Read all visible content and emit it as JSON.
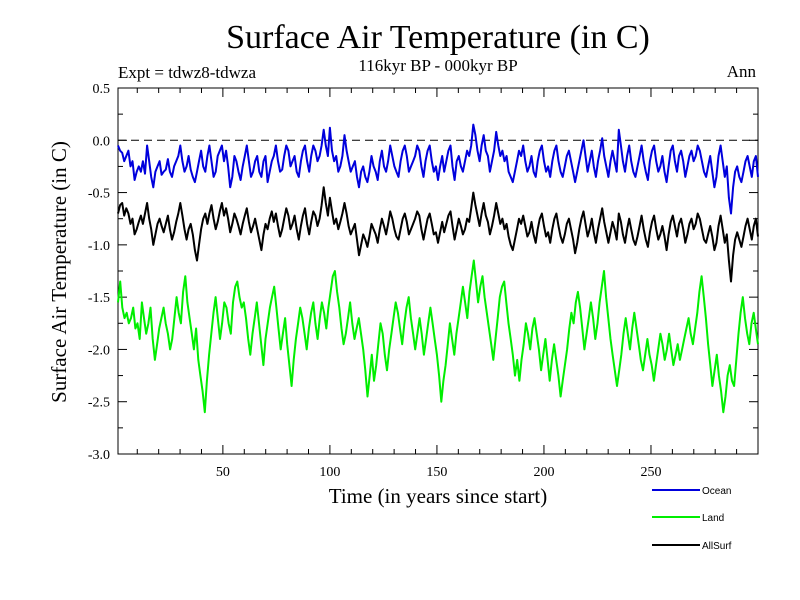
{
  "chart_data": {
    "type": "line",
    "title": "Surface Air Temperature (in C)",
    "subtitle": "116kyr BP - 000kyr BP",
    "experiment": "Expt = tdwz8-tdwza",
    "season": "Ann",
    "xlabel": "Time (in years since start)",
    "ylabel": "Surface Air Temperature (in C)",
    "xlim": [
      1,
      300
    ],
    "ylim": [
      -3.0,
      0.5
    ],
    "x_ticks": [
      50,
      100,
      150,
      200,
      250
    ],
    "x_tick_labels": [
      "50",
      "100",
      "150",
      "200",
      "250"
    ],
    "y_ticks": [
      0.5,
      0.0,
      -0.5,
      -1.0,
      -1.5,
      -2.0,
      -2.5,
      -3.0
    ],
    "y_tick_labels": [
      "0.5",
      "0.0",
      "-0.5",
      "-1.0",
      "-1.5",
      "-2.0",
      "-2.5",
      "-3.0"
    ],
    "reference_line": 0.0,
    "series": [
      {
        "name": "Ocean",
        "color": "#0000dd",
        "values": [
          -0.05,
          -0.1,
          -0.12,
          -0.2,
          -0.15,
          -0.1,
          -0.25,
          -0.2,
          -0.38,
          -0.3,
          -0.25,
          -0.3,
          -0.2,
          -0.32,
          -0.05,
          -0.2,
          -0.35,
          -0.45,
          -0.3,
          -0.25,
          -0.2,
          -0.33,
          -0.3,
          -0.28,
          -0.18,
          -0.3,
          -0.35,
          -0.25,
          -0.2,
          -0.15,
          -0.05,
          -0.2,
          -0.3,
          -0.25,
          -0.15,
          -0.28,
          -0.35,
          -0.4,
          -0.3,
          -0.2,
          -0.1,
          -0.25,
          -0.3,
          -0.15,
          -0.05,
          -0.2,
          -0.35,
          -0.3,
          -0.15,
          -0.1,
          -0.05,
          -0.2,
          -0.1,
          -0.25,
          -0.45,
          -0.35,
          -0.15,
          -0.2,
          -0.3,
          -0.38,
          -0.25,
          -0.15,
          -0.05,
          -0.2,
          -0.35,
          -0.3,
          -0.2,
          -0.15,
          -0.3,
          -0.35,
          -0.2,
          -0.15,
          -0.4,
          -0.3,
          -0.2,
          -0.15,
          -0.05,
          -0.2,
          -0.3,
          -0.28,
          -0.15,
          -0.05,
          -0.1,
          -0.25,
          -0.2,
          -0.15,
          -0.3,
          -0.35,
          -0.2,
          -0.1,
          -0.05,
          -0.2,
          -0.3,
          -0.15,
          -0.05,
          -0.1,
          -0.2,
          -0.15,
          -0.05,
          0.1,
          -0.05,
          -0.15,
          0.12,
          -0.1,
          -0.2,
          -0.15,
          -0.3,
          -0.25,
          -0.15,
          0.05,
          -0.1,
          -0.2,
          -0.3,
          -0.25,
          -0.2,
          -0.35,
          -0.45,
          -0.3,
          -0.25,
          -0.35,
          -0.4,
          -0.3,
          -0.15,
          -0.25,
          -0.3,
          -0.38,
          -0.2,
          -0.1,
          -0.25,
          -0.3,
          -0.2,
          -0.05,
          -0.15,
          -0.25,
          -0.3,
          -0.35,
          -0.2,
          -0.1,
          -0.05,
          -0.15,
          -0.3,
          -0.25,
          -0.2,
          -0.15,
          -0.05,
          -0.1,
          -0.25,
          -0.35,
          -0.2,
          -0.1,
          -0.05,
          -0.2,
          -0.3,
          -0.25,
          -0.38,
          -0.25,
          -0.15,
          -0.3,
          -0.2,
          -0.1,
          -0.05,
          -0.25,
          -0.38,
          -0.2,
          -0.15,
          -0.25,
          -0.3,
          -0.2,
          -0.1,
          -0.15,
          -0.05,
          0.15,
          0.05,
          -0.1,
          -0.2,
          -0.05,
          0.05,
          -0.1,
          -0.15,
          -0.3,
          -0.2,
          -0.1,
          0.08,
          -0.05,
          -0.15,
          -0.1,
          -0.2,
          -0.15,
          -0.3,
          -0.35,
          -0.4,
          -0.3,
          -0.2,
          -0.1,
          -0.15,
          -0.05,
          -0.2,
          -0.3,
          -0.25,
          -0.15,
          -0.3,
          -0.35,
          -0.2,
          -0.1,
          -0.05,
          -0.2,
          -0.3,
          -0.25,
          -0.35,
          -0.2,
          -0.1,
          -0.05,
          -0.2,
          -0.3,
          -0.35,
          -0.25,
          -0.15,
          -0.1,
          -0.2,
          -0.3,
          -0.4,
          -0.3,
          -0.2,
          -0.1,
          0.0,
          -0.15,
          -0.3,
          -0.2,
          -0.1,
          -0.25,
          -0.35,
          -0.2,
          -0.1,
          0.02,
          -0.15,
          -0.25,
          -0.35,
          -0.2,
          -0.1,
          -0.2,
          -0.3,
          0.1,
          -0.05,
          -0.2,
          -0.3,
          -0.15,
          -0.05,
          -0.2,
          -0.3,
          -0.35,
          -0.25,
          -0.15,
          -0.05,
          -0.2,
          -0.3,
          -0.38,
          -0.2,
          -0.1,
          -0.05,
          -0.2,
          -0.3,
          -0.25,
          -0.15,
          -0.3,
          -0.4,
          -0.25,
          -0.1,
          -0.05,
          -0.2,
          -0.3,
          -0.15,
          -0.1,
          -0.2,
          -0.35,
          -0.25,
          -0.15,
          -0.1,
          -0.2,
          -0.15,
          -0.05,
          -0.1,
          -0.2,
          -0.3,
          -0.35,
          -0.25,
          -0.15,
          -0.3,
          -0.45,
          -0.35,
          -0.15,
          -0.05,
          -0.2,
          -0.35,
          -0.25,
          -0.55,
          -0.7,
          -0.45,
          -0.3,
          -0.25,
          -0.35,
          -0.4,
          -0.3,
          -0.2,
          -0.15,
          -0.25,
          -0.35,
          -0.2,
          -0.15,
          -0.35
        ]
      },
      {
        "name": "Land",
        "color": "#00ee00",
        "values": [
          -1.55,
          -1.35,
          -1.6,
          -1.7,
          -1.65,
          -1.75,
          -1.7,
          -1.6,
          -1.8,
          -1.75,
          -1.9,
          -1.55,
          -1.7,
          -1.85,
          -1.75,
          -1.6,
          -1.9,
          -2.1,
          -1.95,
          -1.8,
          -1.7,
          -1.6,
          -1.75,
          -1.85,
          -2.0,
          -1.9,
          -1.7,
          -1.5,
          -1.65,
          -1.75,
          -1.45,
          -1.3,
          -1.55,
          -1.7,
          -1.85,
          -2.0,
          -1.8,
          -2.1,
          -2.25,
          -2.4,
          -2.6,
          -2.3,
          -2.05,
          -1.85,
          -1.65,
          -1.5,
          -1.7,
          -1.9,
          -1.75,
          -1.55,
          -1.6,
          -1.75,
          -1.85,
          -1.55,
          -1.4,
          -1.35,
          -1.5,
          -1.6,
          -1.55,
          -1.7,
          -1.9,
          -2.05,
          -1.85,
          -1.7,
          -1.55,
          -1.75,
          -1.95,
          -2.15,
          -1.9,
          -1.75,
          -1.6,
          -1.5,
          -1.4,
          -1.6,
          -1.8,
          -2.0,
          -1.85,
          -1.7,
          -1.95,
          -2.15,
          -2.35,
          -2.1,
          -1.9,
          -1.75,
          -1.6,
          -1.7,
          -1.85,
          -2.0,
          -1.8,
          -1.65,
          -1.55,
          -1.75,
          -1.9,
          -1.7,
          -1.55,
          -1.65,
          -1.8,
          -1.6,
          -1.45,
          -1.3,
          -1.25,
          -1.45,
          -1.6,
          -1.8,
          -1.95,
          -1.85,
          -1.7,
          -1.55,
          -1.75,
          -1.9,
          -1.8,
          -1.7,
          -1.85,
          -2.0,
          -2.2,
          -2.45,
          -2.25,
          -2.05,
          -2.3,
          -2.15,
          -1.95,
          -1.75,
          -1.85,
          -2.05,
          -2.2,
          -2.0,
          -1.85,
          -1.7,
          -1.55,
          -1.65,
          -1.8,
          -1.95,
          -1.75,
          -1.6,
          -1.5,
          -1.7,
          -1.85,
          -2.0,
          -1.85,
          -1.7,
          -1.85,
          -2.05,
          -1.9,
          -1.75,
          -1.6,
          -1.75,
          -1.9,
          -2.05,
          -2.25,
          -2.5,
          -2.3,
          -2.15,
          -1.95,
          -1.75,
          -1.9,
          -2.05,
          -1.85,
          -1.7,
          -1.55,
          -1.4,
          -1.55,
          -1.7,
          -1.45,
          -1.3,
          -1.15,
          -1.35,
          -1.55,
          -1.4,
          -1.3,
          -1.5,
          -1.65,
          -1.8,
          -1.95,
          -2.1,
          -1.9,
          -1.7,
          -1.5,
          -1.4,
          -1.35,
          -1.55,
          -1.75,
          -1.9,
          -2.05,
          -2.25,
          -2.1,
          -2.3,
          -2.1,
          -1.95,
          -1.75,
          -1.85,
          -2.0,
          -1.8,
          -1.7,
          -1.85,
          -2.0,
          -2.2,
          -2.05,
          -1.9,
          -2.1,
          -2.3,
          -2.1,
          -1.95,
          -2.1,
          -2.25,
          -2.45,
          -2.3,
          -2.15,
          -2.0,
          -1.8,
          -1.65,
          -1.75,
          -1.55,
          -1.45,
          -1.6,
          -1.8,
          -2.0,
          -1.85,
          -1.7,
          -1.55,
          -1.7,
          -1.9,
          -1.75,
          -1.55,
          -1.4,
          -1.25,
          -1.5,
          -1.7,
          -1.9,
          -2.05,
          -2.2,
          -2.35,
          -2.2,
          -2.05,
          -1.85,
          -1.7,
          -1.85,
          -2.0,
          -1.8,
          -1.65,
          -1.8,
          -1.95,
          -2.1,
          -2.2,
          -2.05,
          -1.9,
          -2.05,
          -2.15,
          -2.3,
          -2.15,
          -2.0,
          -1.85,
          -1.95,
          -2.1,
          -2.0,
          -1.85,
          -2.0,
          -2.15,
          -2.05,
          -1.95,
          -2.1,
          -2.0,
          -1.9,
          -1.8,
          -1.7,
          -1.85,
          -1.95,
          -1.8,
          -1.65,
          -1.45,
          -1.3,
          -1.5,
          -1.7,
          -1.95,
          -2.15,
          -2.35,
          -2.2,
          -2.05,
          -2.25,
          -2.4,
          -2.6,
          -2.45,
          -2.25,
          -2.15,
          -2.3,
          -2.35,
          -2.1,
          -1.85,
          -1.65,
          -1.5,
          -1.7,
          -1.85,
          -1.95,
          -1.75,
          -1.65,
          -1.8,
          -1.95
        ]
      },
      {
        "name": "AllSurf",
        "color": "#000000",
        "values": [
          -0.7,
          -0.62,
          -0.6,
          -0.72,
          -0.65,
          -0.7,
          -0.8,
          -0.75,
          -0.9,
          -0.85,
          -0.78,
          -0.72,
          -0.8,
          -0.7,
          -0.6,
          -0.75,
          -0.85,
          -1.0,
          -0.9,
          -0.8,
          -0.75,
          -0.82,
          -0.88,
          -0.8,
          -0.72,
          -0.85,
          -0.95,
          -0.88,
          -0.78,
          -0.7,
          -0.6,
          -0.72,
          -0.85,
          -0.95,
          -0.85,
          -0.8,
          -0.9,
          -1.05,
          -1.15,
          -1.0,
          -0.85,
          -0.75,
          -0.7,
          -0.8,
          -0.7,
          -0.62,
          -0.75,
          -0.85,
          -0.78,
          -0.68,
          -0.6,
          -0.72,
          -0.65,
          -0.75,
          -0.88,
          -0.8,
          -0.7,
          -0.75,
          -0.82,
          -0.9,
          -0.8,
          -0.72,
          -0.65,
          -0.78,
          -0.88,
          -0.82,
          -0.75,
          -0.85,
          -0.95,
          -1.05,
          -0.9,
          -0.8,
          -0.85,
          -0.75,
          -0.68,
          -0.78,
          -0.7,
          -0.82,
          -0.92,
          -0.85,
          -0.75,
          -0.65,
          -0.72,
          -0.85,
          -0.8,
          -0.72,
          -0.85,
          -0.95,
          -0.82,
          -0.72,
          -0.65,
          -0.8,
          -0.9,
          -0.78,
          -0.68,
          -0.72,
          -0.82,
          -0.75,
          -0.62,
          -0.45,
          -0.6,
          -0.72,
          -0.55,
          -0.68,
          -0.8,
          -0.75,
          -0.85,
          -0.78,
          -0.7,
          -0.6,
          -0.7,
          -0.82,
          -0.9,
          -0.85,
          -0.8,
          -0.95,
          -1.1,
          -1.0,
          -0.9,
          -0.95,
          -1.02,
          -0.92,
          -0.8,
          -0.85,
          -0.9,
          -0.98,
          -0.85,
          -0.75,
          -0.82,
          -0.9,
          -0.8,
          -0.68,
          -0.75,
          -0.85,
          -0.92,
          -0.95,
          -0.85,
          -0.75,
          -0.7,
          -0.78,
          -0.9,
          -0.85,
          -0.8,
          -0.75,
          -0.68,
          -0.72,
          -0.85,
          -0.95,
          -0.85,
          -0.75,
          -0.7,
          -0.8,
          -0.9,
          -0.88,
          -0.98,
          -0.88,
          -0.78,
          -0.88,
          -0.8,
          -0.72,
          -0.68,
          -0.82,
          -0.95,
          -0.85,
          -0.75,
          -0.82,
          -0.9,
          -0.85,
          -0.75,
          -0.78,
          -0.65,
          -0.5,
          -0.62,
          -0.72,
          -0.82,
          -0.7,
          -0.6,
          -0.72,
          -0.78,
          -0.9,
          -0.82,
          -0.72,
          -0.6,
          -0.7,
          -0.8,
          -0.75,
          -0.85,
          -0.8,
          -0.92,
          -1.0,
          -1.05,
          -0.95,
          -0.85,
          -0.75,
          -0.8,
          -0.72,
          -0.82,
          -0.92,
          -0.88,
          -0.78,
          -0.9,
          -0.98,
          -0.85,
          -0.75,
          -0.7,
          -0.82,
          -0.92,
          -0.88,
          -0.98,
          -0.85,
          -0.75,
          -0.7,
          -0.82,
          -0.92,
          -0.98,
          -0.9,
          -0.8,
          -0.75,
          -0.85,
          -0.95,
          -1.08,
          -0.98,
          -0.85,
          -0.75,
          -0.68,
          -0.8,
          -0.92,
          -0.85,
          -0.75,
          -0.88,
          -0.98,
          -0.85,
          -0.75,
          -0.65,
          -0.78,
          -0.88,
          -0.98,
          -0.88,
          -0.78,
          -0.85,
          -0.95,
          -0.7,
          -0.78,
          -0.9,
          -0.98,
          -0.85,
          -0.75,
          -0.85,
          -0.95,
          -1.0,
          -0.92,
          -0.82,
          -0.72,
          -0.85,
          -0.95,
          -1.02,
          -0.88,
          -0.78,
          -0.72,
          -0.85,
          -0.95,
          -0.9,
          -0.82,
          -0.92,
          -1.05,
          -0.9,
          -0.78,
          -0.72,
          -0.82,
          -0.92,
          -0.8,
          -0.75,
          -0.85,
          -0.98,
          -0.9,
          -0.8,
          -0.75,
          -0.85,
          -0.8,
          -0.7,
          -0.75,
          -0.85,
          -0.95,
          -0.98,
          -0.9,
          -0.82,
          -0.92,
          -1.05,
          -0.98,
          -0.82,
          -0.72,
          -0.85,
          -0.98,
          -0.9,
          -1.15,
          -1.35,
          -1.1,
          -0.95,
          -0.88,
          -0.95,
          -1.02,
          -0.92,
          -0.82,
          -0.75,
          -0.85,
          -0.95,
          -0.82,
          -0.75,
          -0.92
        ]
      }
    ],
    "legend_position": "bottom-right"
  }
}
